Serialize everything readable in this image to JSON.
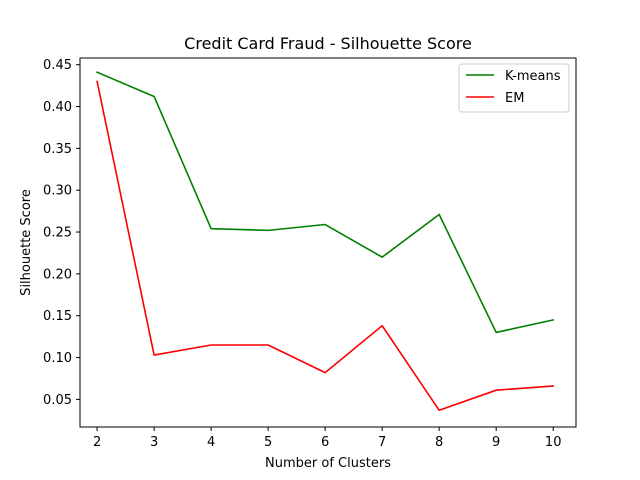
{
  "chart_data": {
    "type": "line",
    "title": "Credit Card Fraud - Silhouette Score",
    "xlabel": "Number of Clusters",
    "ylabel": "Silhouette Score",
    "x": [
      2,
      3,
      4,
      5,
      6,
      7,
      8,
      9,
      10
    ],
    "xlim": [
      1.7,
      10.4
    ],
    "ylim": [
      0.017,
      0.458
    ],
    "xticks": [
      "2",
      "3",
      "4",
      "5",
      "6",
      "7",
      "8",
      "9",
      "10"
    ],
    "yticks": [
      "0.05",
      "0.10",
      "0.15",
      "0.20",
      "0.25",
      "0.30",
      "0.35",
      "0.40",
      "0.45"
    ],
    "grid": false,
    "legend_position": "upper right",
    "series": [
      {
        "name": "K-means",
        "color": "#008000",
        "values": [
          0.441,
          0.412,
          0.254,
          0.252,
          0.259,
          0.22,
          0.271,
          0.13,
          0.145
        ]
      },
      {
        "name": "EM",
        "color": "#ff0000",
        "values": [
          0.43,
          0.103,
          0.115,
          0.115,
          0.082,
          0.138,
          0.037,
          0.061,
          0.066
        ]
      }
    ]
  }
}
